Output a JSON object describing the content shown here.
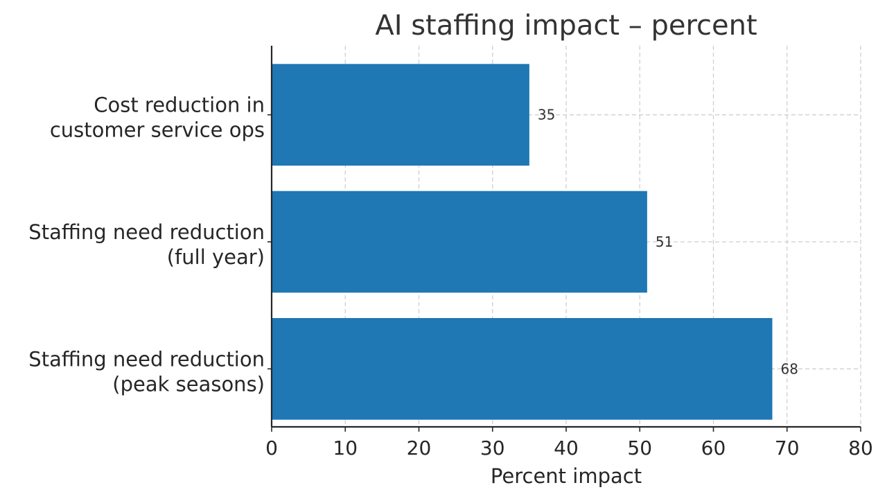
{
  "chart_data": {
    "type": "bar",
    "orientation": "horizontal",
    "title": "AI staffing impact – percent",
    "xlabel": "Percent impact",
    "ylabel": "",
    "categories": [
      [
        "Cost reduction in",
        "customer service ops"
      ],
      [
        "Staffing need reduction",
        "(full year)"
      ],
      [
        "Staffing need reduction",
        "(peak seasons)"
      ]
    ],
    "values": [
      35,
      51,
      68
    ],
    "data_labels": [
      "35",
      "51",
      "68"
    ],
    "xlim": [
      0,
      80
    ],
    "xticks": [
      0,
      10,
      20,
      30,
      40,
      50,
      60,
      70,
      80
    ],
    "grid": true,
    "bar_color": "#1f77b4"
  }
}
